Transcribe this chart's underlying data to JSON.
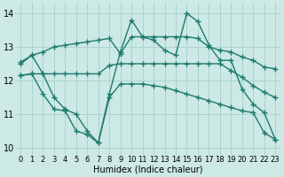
{
  "xlabel": "Humidex (Indice chaleur)",
  "bg_color": "#cce9e5",
  "grid_color": "#aad4cf",
  "line_color": "#1e7b6e",
  "xlim": [
    -0.5,
    23.5
  ],
  "ylim": [
    9.8,
    14.3
  ],
  "yticks": [
    10,
    11,
    12,
    13,
    14
  ],
  "xticks": [
    0,
    1,
    2,
    3,
    4,
    5,
    6,
    7,
    8,
    9,
    10,
    11,
    12,
    13,
    14,
    15,
    16,
    17,
    18,
    19,
    20,
    21,
    22,
    23
  ],
  "line1_x": [
    0,
    1,
    2,
    3,
    4,
    5,
    6,
    7,
    8,
    9,
    10,
    11,
    12,
    13,
    14,
    15,
    16,
    17,
    18,
    19,
    20,
    21,
    22,
    23
  ],
  "line1_y": [
    12.55,
    12.75,
    12.85,
    13.0,
    13.05,
    13.1,
    13.15,
    13.2,
    13.25,
    12.8,
    13.3,
    13.3,
    13.3,
    13.3,
    13.3,
    13.3,
    13.25,
    13.0,
    12.9,
    12.85,
    12.7,
    12.6,
    12.4,
    12.35
  ],
  "line2_x": [
    0,
    1,
    2,
    3,
    4,
    5,
    6,
    7,
    8,
    9,
    10,
    11,
    12,
    13,
    14,
    15,
    16,
    17,
    18,
    19,
    20,
    21,
    22,
    23
  ],
  "line2_y": [
    12.15,
    12.2,
    12.2,
    12.2,
    12.2,
    12.2,
    12.2,
    12.2,
    12.45,
    12.5,
    12.5,
    12.5,
    12.5,
    12.5,
    12.5,
    12.5,
    12.5,
    12.5,
    12.5,
    12.3,
    12.1,
    11.85,
    11.65,
    11.5
  ],
  "line3_x": [
    0,
    1,
    2,
    3,
    4,
    5,
    6,
    7,
    8,
    9,
    10,
    11,
    12,
    13,
    14,
    15,
    16,
    17,
    18,
    19,
    20,
    21,
    22,
    23
  ],
  "line3_y": [
    12.5,
    12.75,
    12.2,
    11.5,
    11.15,
    11.0,
    10.5,
    10.15,
    11.6,
    12.85,
    13.8,
    13.3,
    13.2,
    12.9,
    12.75,
    14.0,
    13.75,
    13.05,
    12.6,
    12.6,
    11.75,
    11.3,
    11.05,
    10.25
  ],
  "line4_x": [
    0,
    1,
    2,
    3,
    4,
    5,
    6,
    7,
    8,
    9,
    10,
    11,
    12,
    13,
    14,
    15,
    16,
    17,
    18,
    19,
    20,
    21,
    22,
    23
  ],
  "line4_y": [
    12.15,
    12.2,
    11.6,
    11.15,
    11.1,
    10.5,
    10.4,
    10.15,
    11.5,
    11.9,
    11.9,
    11.9,
    11.85,
    11.8,
    11.7,
    11.6,
    11.5,
    11.4,
    11.3,
    11.2,
    11.1,
    11.05,
    10.45,
    10.25
  ],
  "tick_fontsize": 6,
  "xlabel_fontsize": 7,
  "marker": "+",
  "marker_size": 4,
  "linewidth": 1.0
}
